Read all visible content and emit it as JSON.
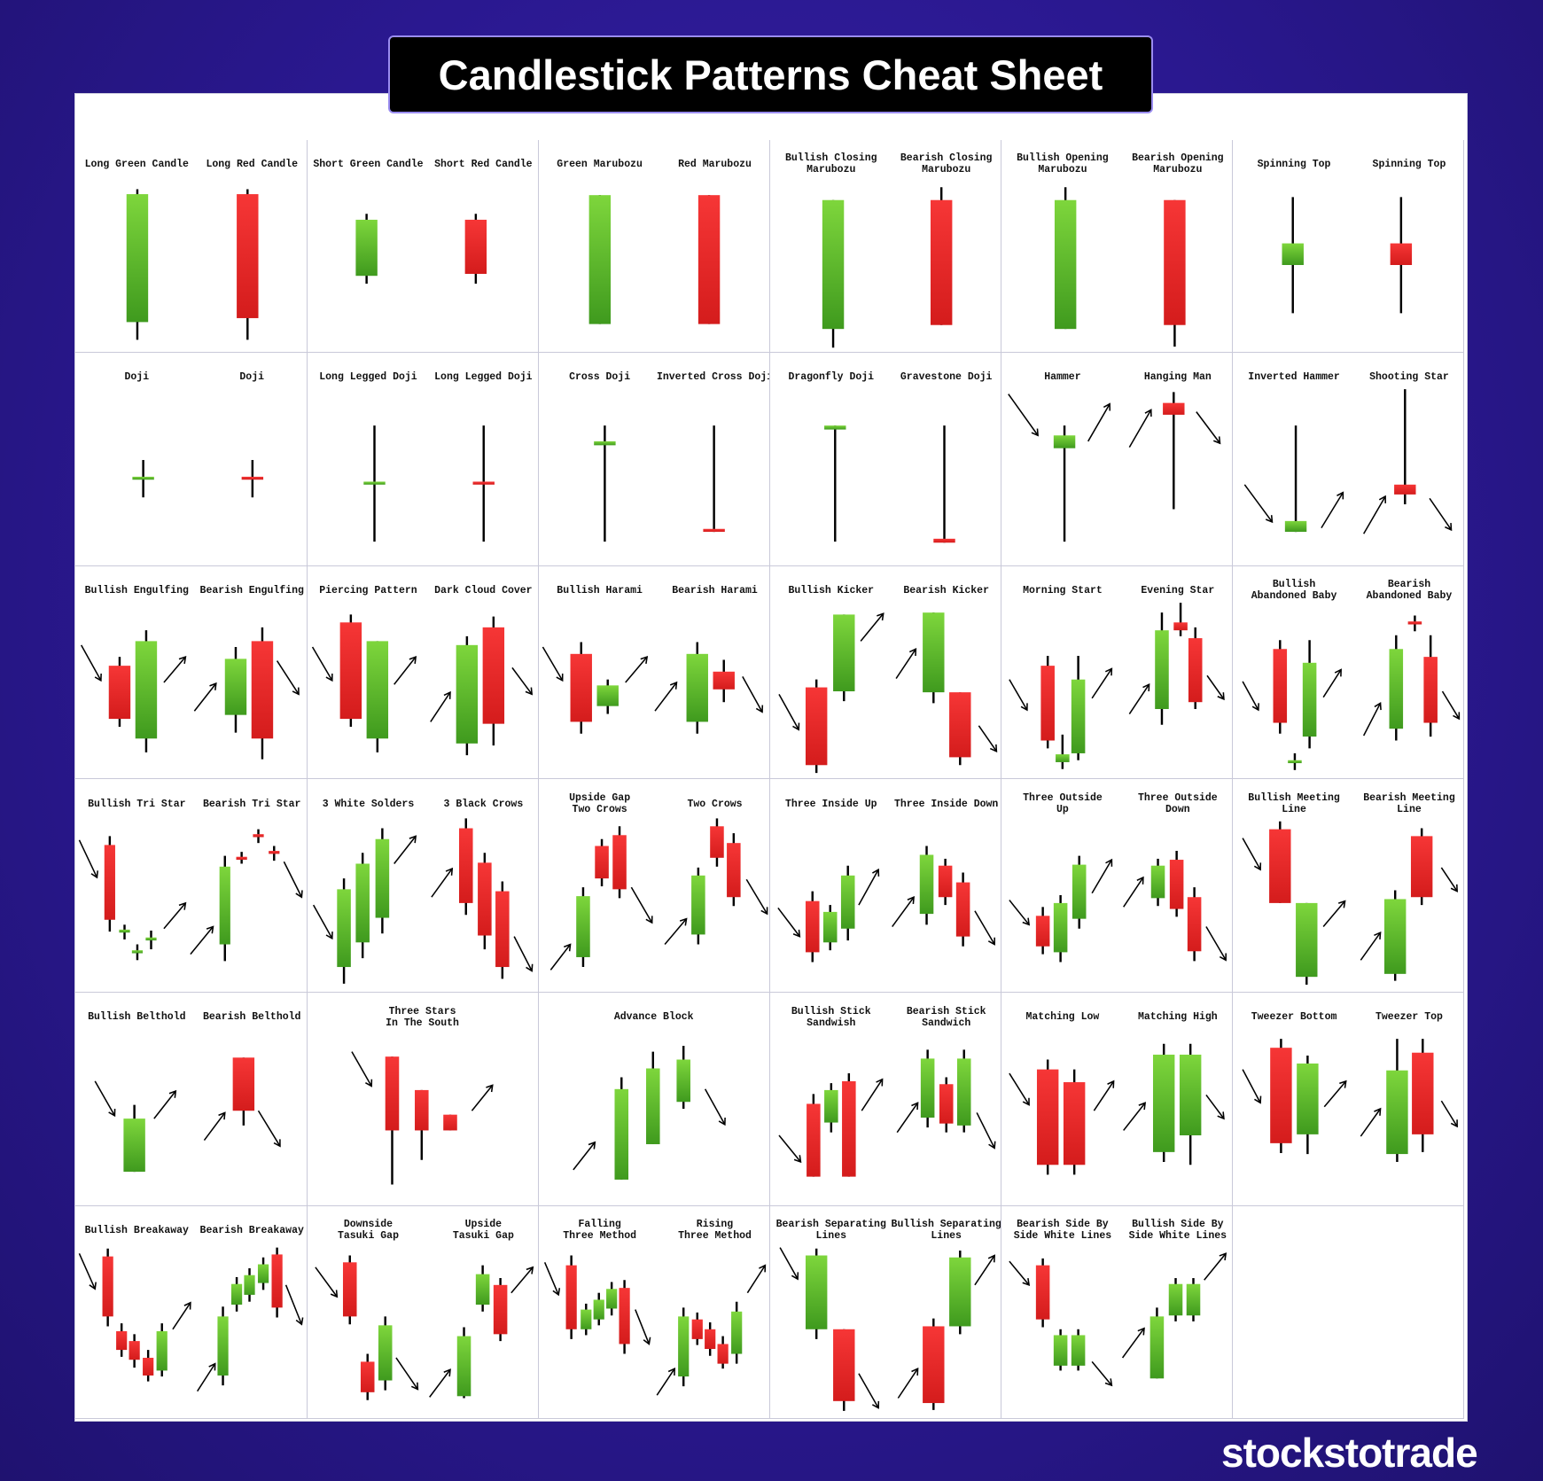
{
  "title": "Candlestick Patterns Cheat Sheet",
  "grid": [
    [
      [
        "Long Green Candle",
        "Long Red Candle"
      ],
      [
        "Short Green Candle",
        "Short Red Candle"
      ],
      [
        "Green Marubozu",
        "Red Marubozu"
      ],
      [
        "Bullish Closing\nMarubozu",
        "Bearish Closing\nMarubozu"
      ],
      [
        "Bullish Opening\nMarubozu",
        "Bearish Opening\nMarubozu"
      ],
      [
        "Spinning Top",
        "Spinning Top"
      ]
    ],
    [
      [
        "Doji",
        "Doji"
      ],
      [
        "Long Legged Doji",
        "Long Legged Doji"
      ],
      [
        "Cross Doji",
        "Inverted Cross Doji"
      ],
      [
        "Dragonfly Doji",
        "Gravestone Doji"
      ],
      [
        "Hammer",
        "Hanging Man"
      ],
      [
        "Inverted Hammer",
        "Shooting Star"
      ]
    ],
    [
      [
        "Bullish Engulfing",
        "Bearish Engulfing"
      ],
      [
        "Piercing Pattern",
        "Dark Cloud Cover"
      ],
      [
        "Bullish Harami",
        "Bearish Harami"
      ],
      [
        "Bullish Kicker",
        "Bearish Kicker"
      ],
      [
        "Morning Start",
        "Evening Star"
      ],
      [
        "Bullish\nAbandoned Baby",
        "Bearish\nAbandoned Baby"
      ]
    ],
    [
      [
        "Bullish Tri Star",
        "Bearish Tri Star"
      ],
      [
        "3 White Solders",
        "3 Black Crows"
      ],
      [
        "Upside Gap\nTwo Crows",
        "Two Crows"
      ],
      [
        "Three Inside Up",
        "Three Inside Down"
      ],
      [
        "Three Outside\nUp",
        "Three Outside\nDown"
      ],
      [
        "Bullish Meeting\nLine",
        "Bearish Meeting\nLine"
      ]
    ],
    [
      [
        "Bullish Belthold",
        "Bearish Belthold"
      ],
      [
        "Three Stars\nIn The South"
      ],
      [
        "Advance Block"
      ],
      [
        "Bullish Stick\nSandwish",
        "Bearish Stick\nSandwich"
      ],
      [
        "Matching Low",
        "Matching High"
      ],
      [
        "Tweezer Bottom",
        "Tweezer Top"
      ]
    ],
    [
      [
        "Bullish Breakaway",
        "Bearish Breakaway"
      ],
      [
        "Downside\nTasuki Gap",
        "Upside\nTasuki Gap"
      ],
      [
        "Falling\nThree Method",
        "Rising\nThree Method"
      ],
      [
        "Bearish Separating\nLines",
        "Bullish Separating\nLines"
      ],
      [
        "Bearish Side By\nSide White Lines",
        "Bullish Side By\nSide White Lines"
      ],
      []
    ]
  ],
  "brand": "stockstotrade"
}
